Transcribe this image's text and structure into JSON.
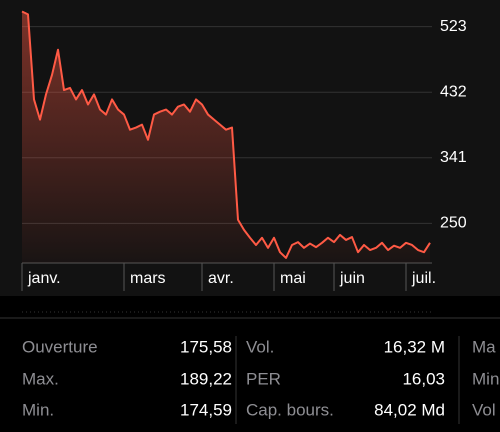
{
  "chart_data": {
    "type": "line",
    "categories": [
      "janv.",
      null,
      null,
      null,
      null,
      null,
      null,
      null,
      null,
      null,
      null,
      null,
      null,
      null,
      null,
      null,
      null,
      "mars",
      null,
      null,
      null,
      null,
      null,
      null,
      null,
      null,
      null,
      null,
      null,
      null,
      "avr.",
      null,
      null,
      null,
      null,
      null,
      null,
      null,
      null,
      null,
      null,
      null,
      "mai",
      null,
      null,
      null,
      null,
      null,
      null,
      null,
      null,
      null,
      "juin",
      null,
      null,
      null,
      null,
      null,
      null,
      null,
      null,
      null,
      null,
      null,
      "juil.",
      null,
      null,
      null,
      null
    ],
    "values": [
      544,
      540,
      422,
      394,
      429,
      456,
      491,
      435,
      438,
      422,
      435,
      415,
      429,
      408,
      401,
      422,
      408,
      401,
      380,
      383,
      387,
      366,
      401,
      405,
      408,
      401,
      412,
      415,
      405,
      422,
      415,
      401,
      394,
      387,
      380,
      383,
      255,
      241,
      230,
      220,
      230,
      216,
      230,
      210,
      202,
      220,
      224,
      216,
      222,
      217,
      223,
      230,
      224,
      234,
      227,
      231,
      210,
      220,
      213,
      216,
      223,
      213,
      219,
      216,
      223,
      220,
      213,
      210,
      223
    ],
    "color": "#ff5a45",
    "ylim": [
      195,
      560
    ],
    "yticks": [
      250,
      341,
      432,
      523
    ],
    "grid": true
  },
  "stats": {
    "columns": [
      {
        "rows": [
          [
            "Ouverture",
            "175,58"
          ],
          [
            "Max.",
            "189,22"
          ],
          [
            "Min.",
            "174,59"
          ]
        ]
      },
      {
        "rows": [
          [
            "Vol.",
            "16,32 M"
          ],
          [
            "PER",
            "16,03"
          ],
          [
            "Cap. bours.",
            "84,02 Md"
          ]
        ]
      },
      {
        "rows": [
          [
            "Ma"
          ],
          [
            "Min"
          ],
          [
            "Vol"
          ]
        ]
      }
    ]
  }
}
